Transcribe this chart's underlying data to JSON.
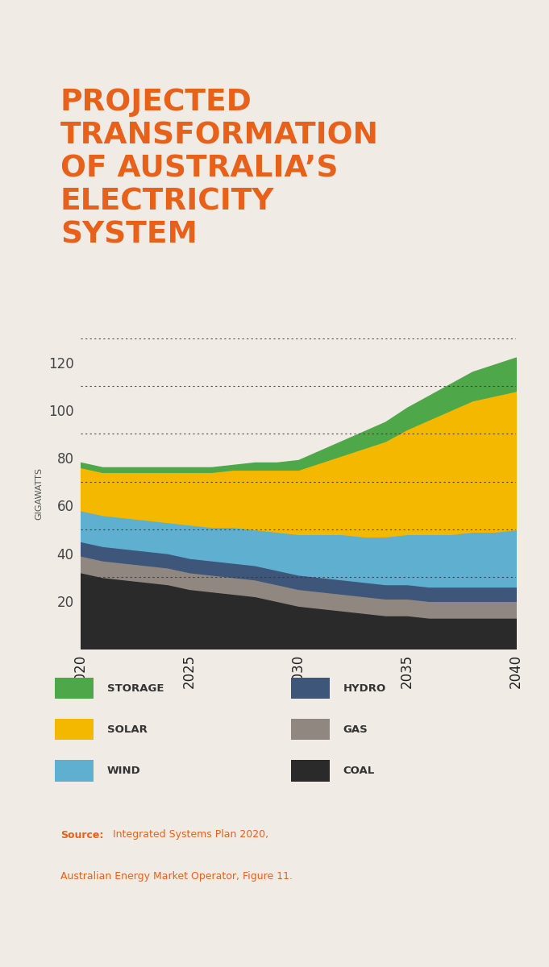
{
  "title_lines": [
    "PROJECTED",
    "TRANSFORMATION",
    "OF AUSTRALIA’S",
    "ELECTRICITY",
    "SYSTEM"
  ],
  "title_color": "#E8611A",
  "background_color": "#F0EBE5",
  "accent_line_color": "#E8611A",
  "years": [
    2020,
    2021,
    2022,
    2023,
    2024,
    2025,
    2026,
    2027,
    2028,
    2029,
    2030,
    2031,
    2032,
    2033,
    2034,
    2035,
    2036,
    2037,
    2038,
    2039,
    2040
  ],
  "coal": [
    32,
    30,
    29,
    28,
    27,
    25,
    24,
    23,
    22,
    20,
    18,
    17,
    16,
    15,
    14,
    14,
    13,
    13,
    13,
    13,
    13
  ],
  "gas": [
    7,
    7,
    7,
    7,
    7,
    7,
    7,
    7,
    7,
    7,
    7,
    7,
    7,
    7,
    7,
    7,
    7,
    7,
    7,
    7,
    7
  ],
  "hydro": [
    6,
    6,
    6,
    6,
    6,
    6,
    6,
    6,
    6,
    6,
    6,
    6,
    6,
    6,
    6,
    6,
    6,
    6,
    6,
    6,
    6
  ],
  "wind": [
    13,
    13,
    13,
    13,
    13,
    14,
    14,
    15,
    15,
    16,
    17,
    18,
    19,
    19,
    20,
    21,
    22,
    22,
    23,
    23,
    24
  ],
  "solar": [
    18,
    18,
    19,
    20,
    21,
    22,
    23,
    24,
    25,
    26,
    27,
    30,
    33,
    37,
    40,
    44,
    48,
    52,
    55,
    57,
    58
  ],
  "storage": [
    2,
    2,
    2,
    2,
    2,
    2,
    2,
    2,
    3,
    3,
    4,
    5,
    6,
    7,
    8,
    9,
    10,
    11,
    12,
    13,
    14
  ],
  "colors": {
    "coal": "#2a2a2a",
    "gas": "#908880",
    "hydro": "#3d567a",
    "wind": "#5fb0d0",
    "solar": "#f5b800",
    "storage": "#4ea84a"
  },
  "ylim": [
    0,
    130
  ],
  "yticks": [
    20,
    40,
    60,
    80,
    100,
    120
  ],
  "grid_values": [
    30,
    50,
    70,
    90,
    110,
    130
  ],
  "ylabel": "GIGAWATTS",
  "source_bold": "Source:",
  "source_rest": " Integrated Systems Plan 2020,",
  "source_line2": "Australian Energy Market Operator, Figure 11.",
  "legend_items": [
    {
      "label": "STORAGE",
      "color": "#4ea84a"
    },
    {
      "label": "SOLAR",
      "color": "#f5b800"
    },
    {
      "label": "WIND",
      "color": "#5fb0d0"
    },
    {
      "label": "HYDRO",
      "color": "#3d567a"
    },
    {
      "label": "GAS",
      "color": "#908880"
    },
    {
      "label": "COAL",
      "color": "#2a2a2a"
    }
  ]
}
